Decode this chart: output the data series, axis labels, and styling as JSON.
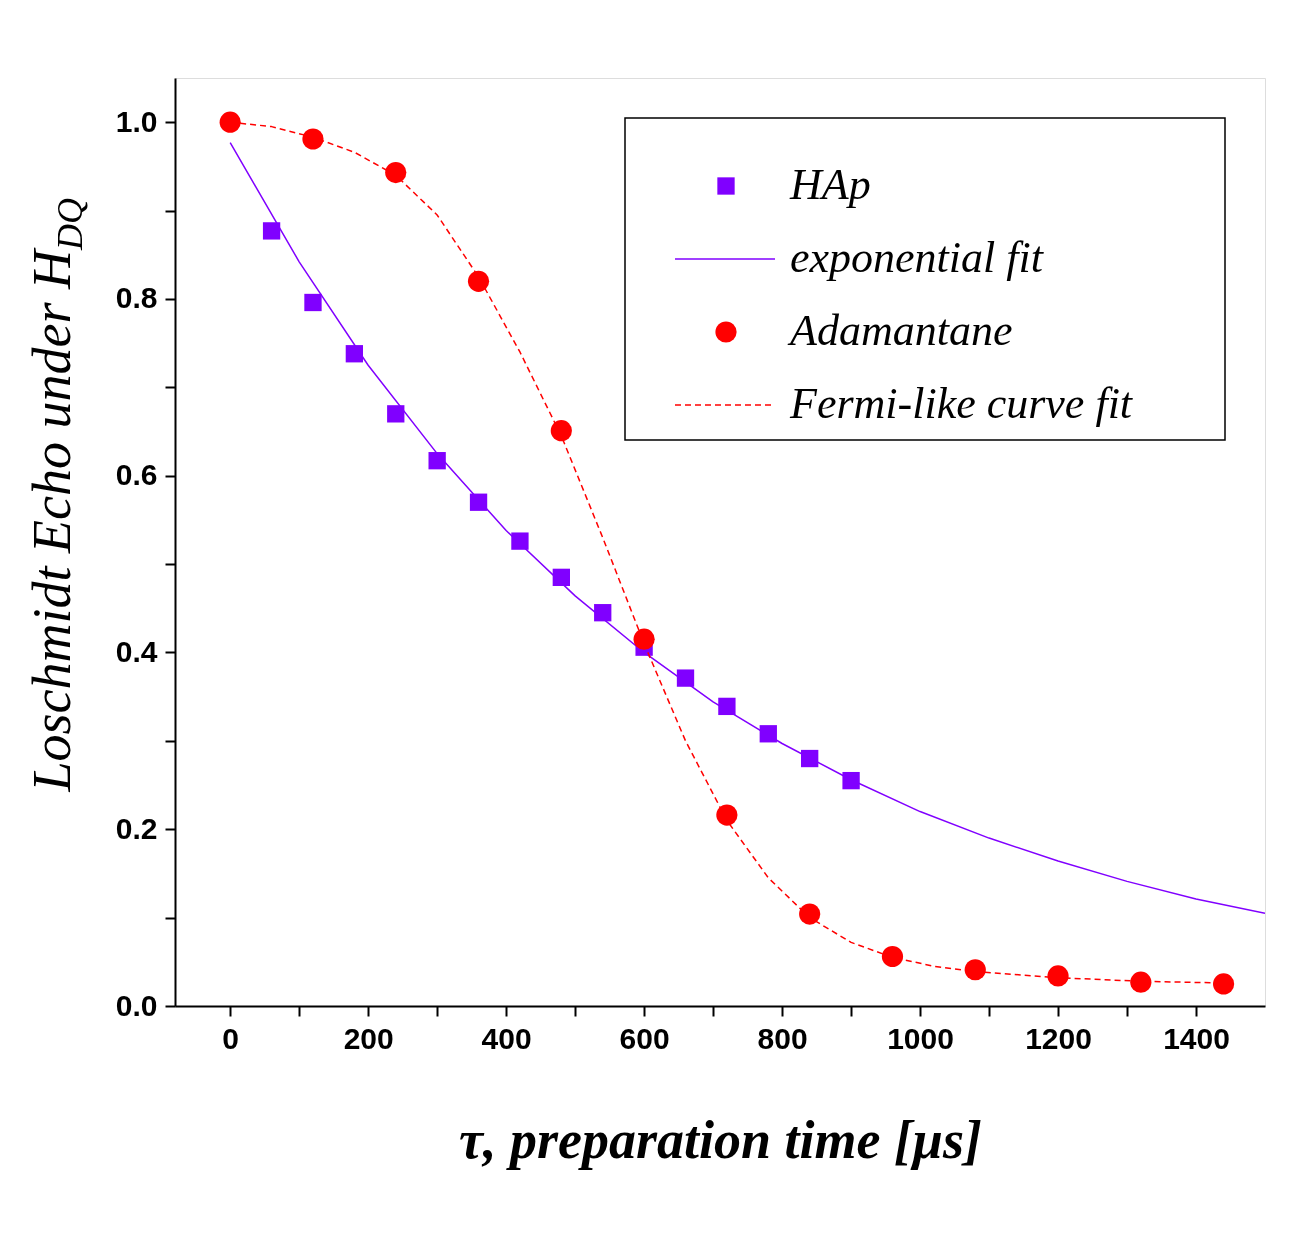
{
  "chart_data": {
    "type": "scatter",
    "xlabel": "τ, preparation time [µs]",
    "ylabel": "Loschmidt Echo under H$_{DQ}$",
    "xlim": [
      -80,
      1500
    ],
    "ylim": [
      0,
      1.05
    ],
    "xticks": [
      0,
      {
        "value": 100,
        "label": null
      },
      200,
      {
        "value": 300,
        "label": null
      },
      400,
      {
        "value": 500,
        "label": null
      },
      600,
      {
        "value": 700,
        "label": null
      },
      800,
      {
        "value": 900,
        "label": null
      },
      1000,
      {
        "value": 1100,
        "label": null
      },
      1200,
      {
        "value": 1300,
        "label": null
      },
      1400
    ],
    "yticks": [
      {
        "value": 0,
        "label": "0.0"
      },
      {
        "value": 0.1,
        "label": null
      },
      0.2,
      {
        "value": 0.3,
        "label": null
      },
      0.4,
      {
        "value": 0.5,
        "label": null
      },
      0.6,
      {
        "value": 0.7,
        "label": null
      },
      0.8,
      {
        "value": 0.9,
        "label": null
      },
      {
        "value": 1,
        "label": "1.0"
      }
    ],
    "grid": false,
    "legend": "top right",
    "series": [
      {
        "name": "HAp",
        "marker": "square",
        "color": "#8000ff",
        "x": [
          60,
          120,
          180,
          240,
          300,
          360,
          420,
          480,
          540,
          600,
          660,
          720,
          780,
          840,
          900
        ],
        "values": [
          0.877,
          0.796,
          0.738,
          0.67,
          0.617,
          0.57,
          0.526,
          0.485,
          0.445,
          0.406,
          0.371,
          0.339,
          0.308,
          0.28,
          0.255
        ]
      },
      {
        "name": "exponential fit",
        "type": "line",
        "line_style": "solid",
        "color": "#8000ff",
        "x": [
          0,
          100,
          200,
          300,
          400,
          500,
          600,
          700,
          800,
          900,
          1000,
          1100,
          1200,
          1300,
          1400,
          1500
        ],
        "values": [
          0.977,
          0.842,
          0.725,
          0.625,
          0.538,
          0.464,
          0.4,
          0.344,
          0.297,
          0.256,
          0.22,
          0.19,
          0.164,
          0.141,
          0.121,
          0.105
        ]
      },
      {
        "name": "Adamantane",
        "marker": "circle",
        "color": "#ff0000",
        "x": [
          0,
          120,
          240,
          360,
          480,
          600,
          720,
          840,
          960,
          1080,
          1200,
          1320,
          1440
        ],
        "values": [
          1.0,
          0.981,
          0.943,
          0.82,
          0.651,
          0.415,
          0.216,
          0.104,
          0.056,
          0.041,
          0.034,
          0.027,
          0.025
        ]
      },
      {
        "name": "Fermi-like curve fit",
        "type": "line",
        "line_style": "dashed",
        "color": "#ff0000",
        "x": [
          0,
          60,
          120,
          180,
          240,
          300,
          360,
          420,
          480,
          540,
          600,
          660,
          720,
          780,
          840,
          900,
          960,
          1020,
          1080,
          1200,
          1320,
          1440
        ],
        "values": [
          1.0,
          0.995,
          0.983,
          0.966,
          0.94,
          0.895,
          0.825,
          0.74,
          0.645,
          0.53,
          0.41,
          0.3,
          0.21,
          0.145,
          0.1,
          0.072,
          0.055,
          0.045,
          0.039,
          0.032,
          0.028,
          0.026
        ]
      }
    ]
  }
}
